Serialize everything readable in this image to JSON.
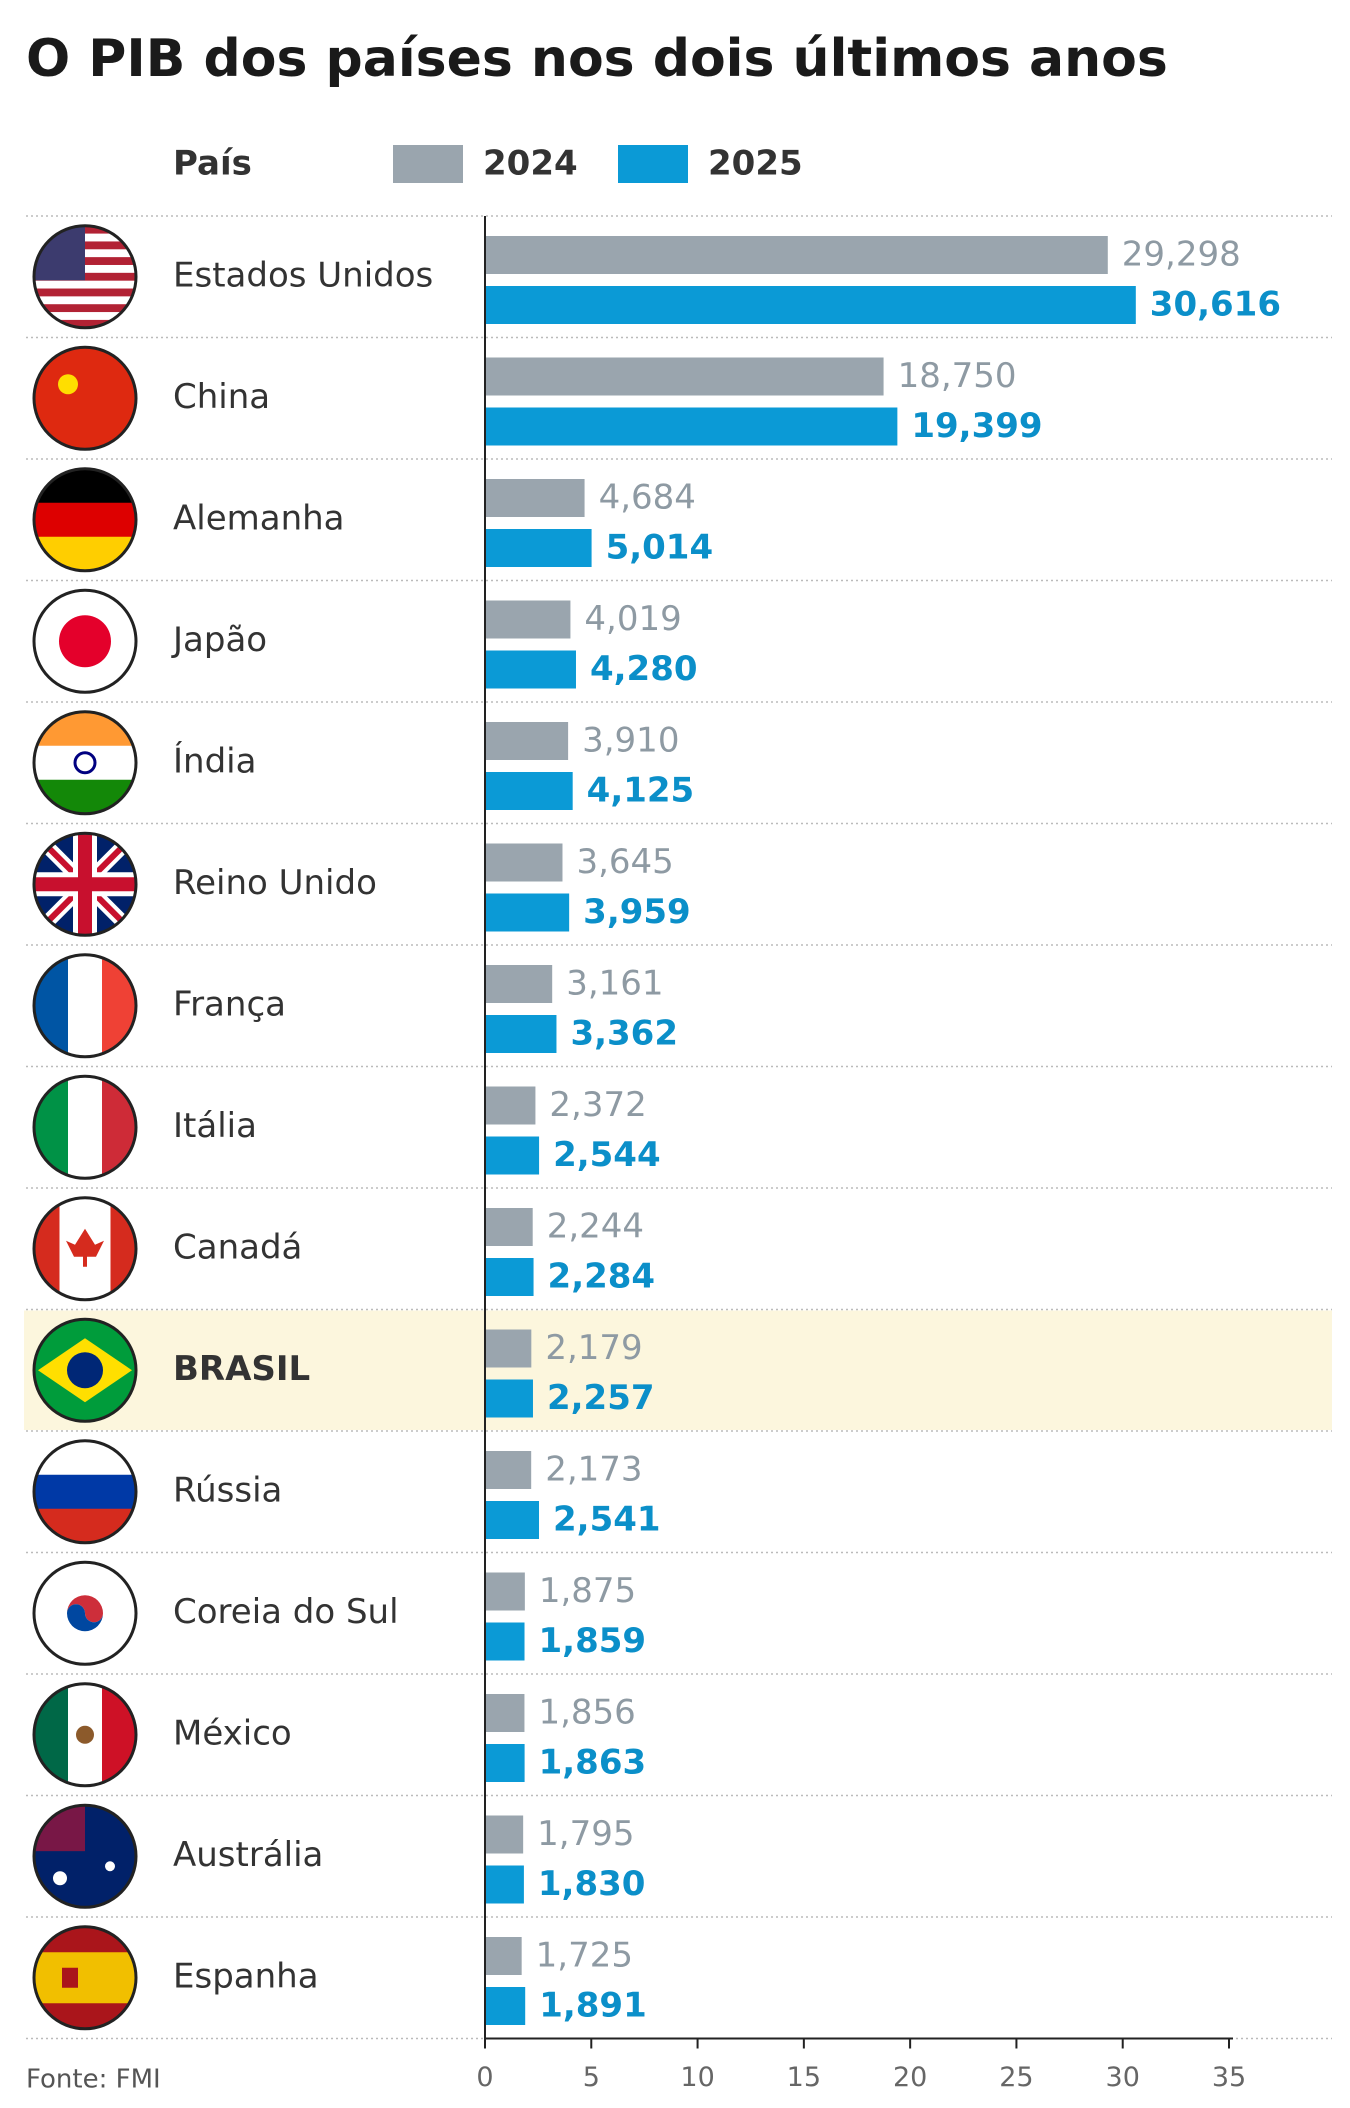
{
  "chart_data": {
    "type": "bar",
    "orientation": "horizontal",
    "title": "O PIB dos países nos dois últimos anos",
    "category_header": "País",
    "source": "Fonte: FMI",
    "categories": [
      "Estados Unidos",
      "China",
      "Alemanha",
      "Japão",
      "Índia",
      "Reino Unido",
      "França",
      "Itália",
      "Canadá",
      "BRASIL",
      "Rússia",
      "Coreia do Sul",
      "México",
      "Austrália",
      "Espanha"
    ],
    "highlight": "BRASIL",
    "series": [
      {
        "name": "2024",
        "color": "#9aa5ae",
        "label_color": "#8e9aa3",
        "values": [
          29.298,
          18.75,
          4.684,
          4.019,
          3.91,
          3.645,
          3.161,
          2.372,
          2.244,
          2.179,
          2.173,
          1.875,
          1.856,
          1.795,
          1.725
        ],
        "value_labels": [
          "29,298",
          "18,750",
          "4,684",
          "4,019",
          "3,910",
          "3,645",
          "3,161",
          "2,372",
          "2,244",
          "2,179",
          "2,173",
          "1,875",
          "1,856",
          "1,795",
          "1,725"
        ]
      },
      {
        "name": "2025",
        "color": "#0b9ad6",
        "label_color": "#0b8fc9",
        "values": [
          30.616,
          19.399,
          5.014,
          4.28,
          4.125,
          3.959,
          3.362,
          2.544,
          2.284,
          2.257,
          2.541,
          1.859,
          1.863,
          1.83,
          1.891
        ],
        "value_labels": [
          "30,616",
          "19,399",
          "5,014",
          "4,280",
          "4,125",
          "3,959",
          "3,362",
          "2,544",
          "2,284",
          "2,257",
          "2,541",
          "1,859",
          "1,863",
          "1,830",
          "1,891"
        ]
      }
    ],
    "xlim": [
      0,
      35
    ],
    "xticks": [
      0,
      5,
      10,
      15,
      20,
      25,
      30,
      35
    ]
  }
}
